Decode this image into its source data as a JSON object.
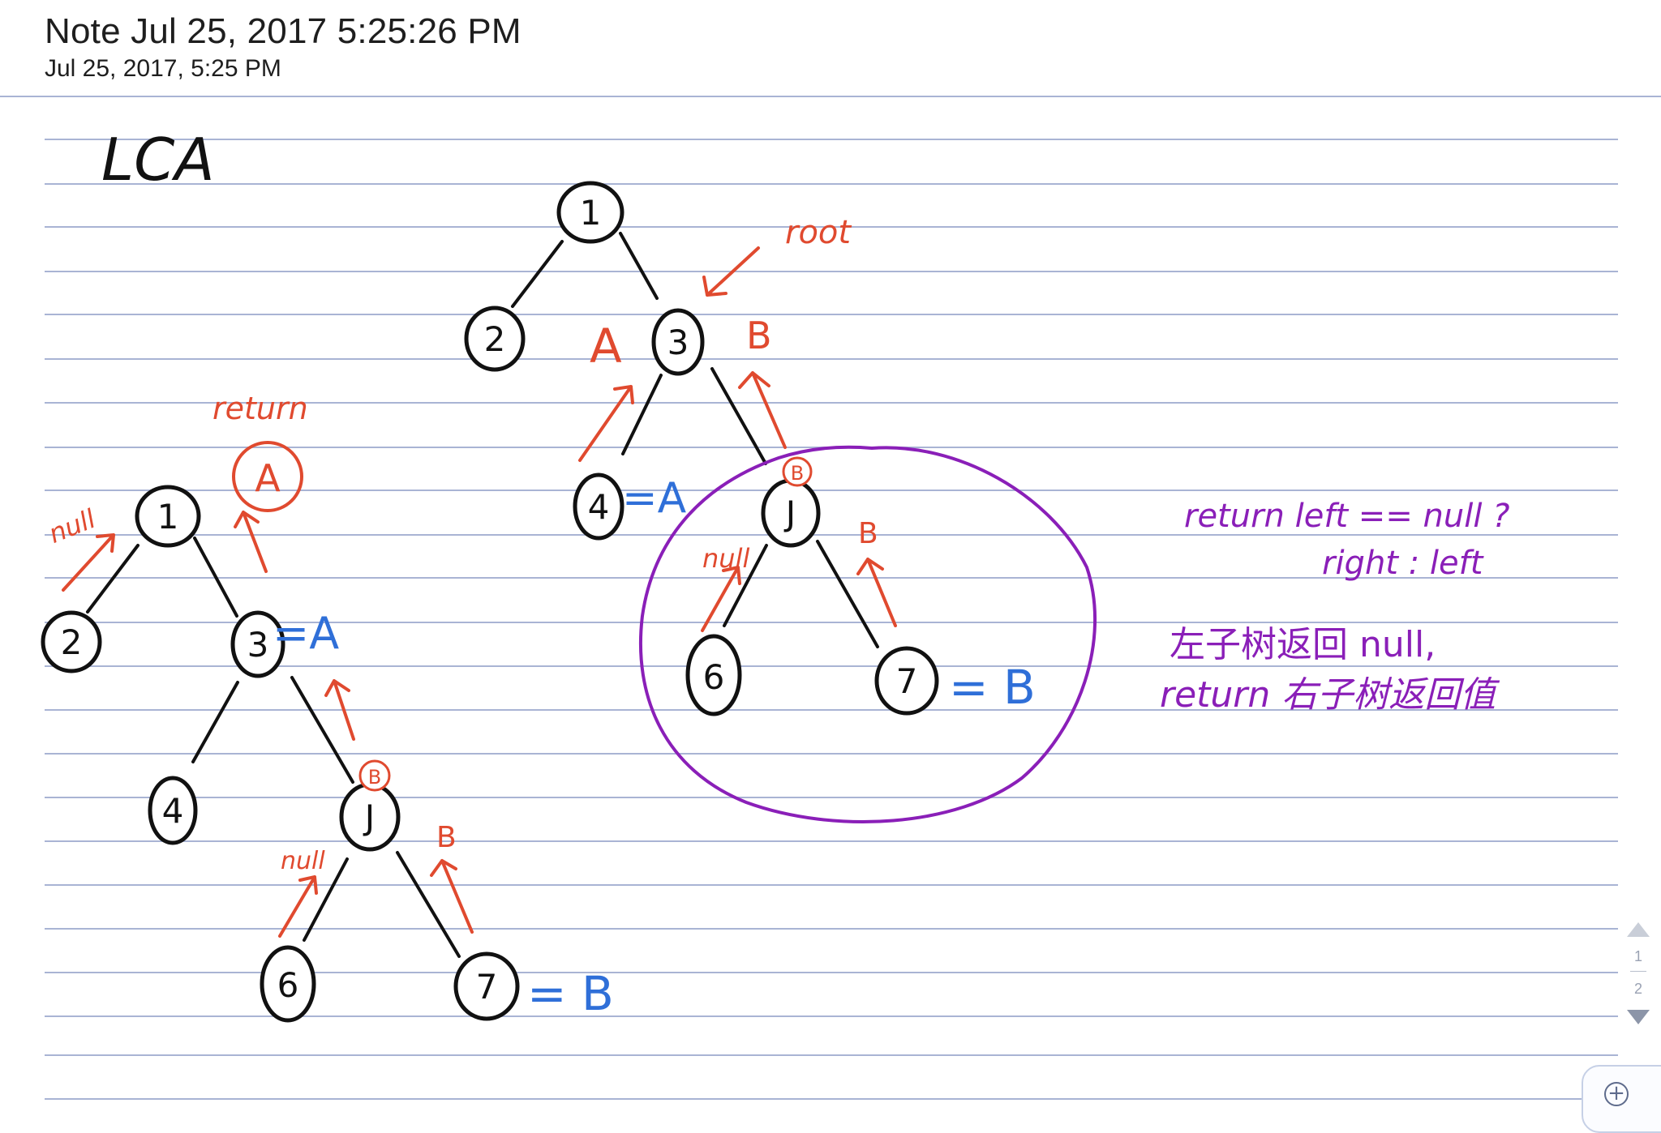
{
  "note": {
    "title": "Note Jul 25, 2017 5:25:26 PM",
    "date": "Jul 25, 2017, 5:25 PM"
  },
  "handwriting": {
    "heading": "LCA",
    "root_label": "root",
    "return_label": "return",
    "a": "A",
    "b": "B",
    "null": "null",
    "eq_a": "=A",
    "eq_b": "= B",
    "node_1": "1",
    "node_2": "2",
    "node_3": "3",
    "node_4": "4",
    "node_5": "J",
    "node_6": "6",
    "node_7": "7",
    "note_line1": "return  left == null ?",
    "note_line2": "right  :  left",
    "note_line3": "左子树返回 null,",
    "note_line4": "return 右子树返回值"
  },
  "pager": {
    "current": "1",
    "total": "2"
  },
  "zoom": {
    "icon": "zoom-in-icon"
  },
  "colors": {
    "ink": "#111111",
    "red": "#e04a2f",
    "blue": "#2f6fd8",
    "purple": "#8a1fb8",
    "rule": "#a9b4d4"
  }
}
